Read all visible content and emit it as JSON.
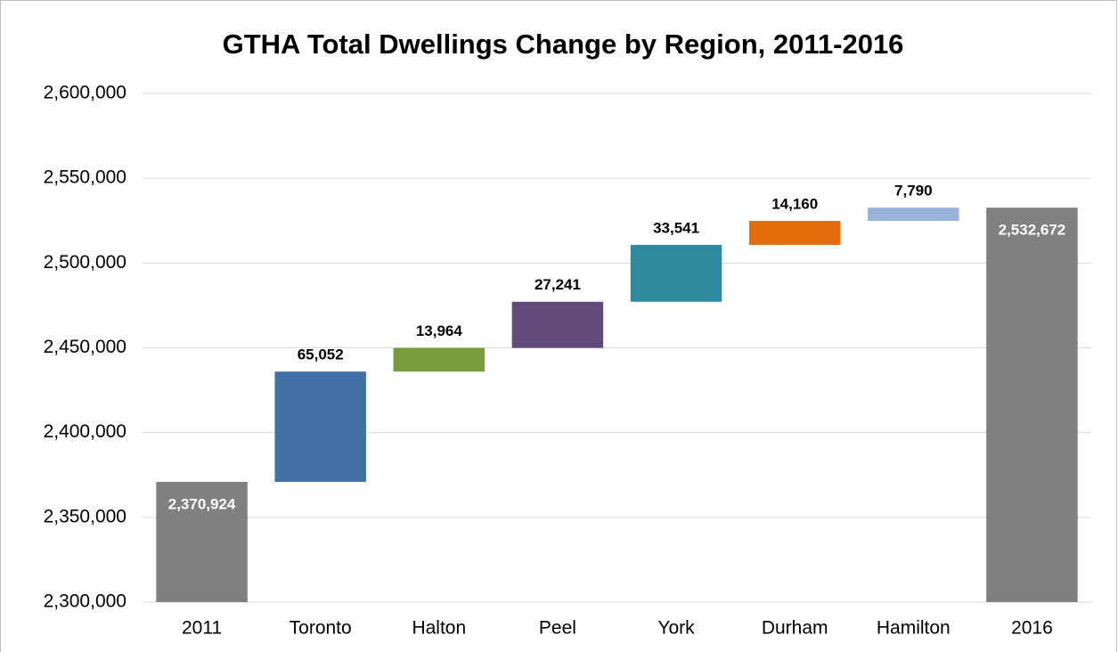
{
  "chart_data": {
    "type": "waterfall",
    "title": "GTHA Total Dwellings Change by Region, 2011-2016",
    "categories": [
      "2011",
      "Toronto",
      "Halton",
      "Peel",
      "York",
      "Durham",
      "Hamilton",
      "2016"
    ],
    "values": [
      2370924,
      65052,
      13964,
      27241,
      33541,
      14160,
      7790,
      2532672
    ],
    "value_labels": [
      "2,370,924",
      "65,052",
      "13,964",
      "27,241",
      "33,541",
      "14,160",
      "7,790",
      "2,532,672"
    ],
    "is_total": [
      true,
      false,
      false,
      false,
      false,
      false,
      false,
      true
    ],
    "colors": [
      "#808080",
      "#4170a5",
      "#789b3c",
      "#614a7c",
      "#2f899f",
      "#e46c0a",
      "#95b3d7",
      "#808080"
    ],
    "ylim": [
      2300000,
      2600000
    ],
    "yticks": [
      {
        "value": 2300000,
        "label": "2,300,000"
      },
      {
        "value": 2350000,
        "label": "2,350,000"
      },
      {
        "value": 2400000,
        "label": "2,400,000"
      },
      {
        "value": 2450000,
        "label": "2,450,000"
      },
      {
        "value": 2500000,
        "label": "2,500,000"
      },
      {
        "value": 2550000,
        "label": "2,550,000"
      },
      {
        "value": 2600000,
        "label": "2,600,000"
      }
    ],
    "grid": true
  }
}
